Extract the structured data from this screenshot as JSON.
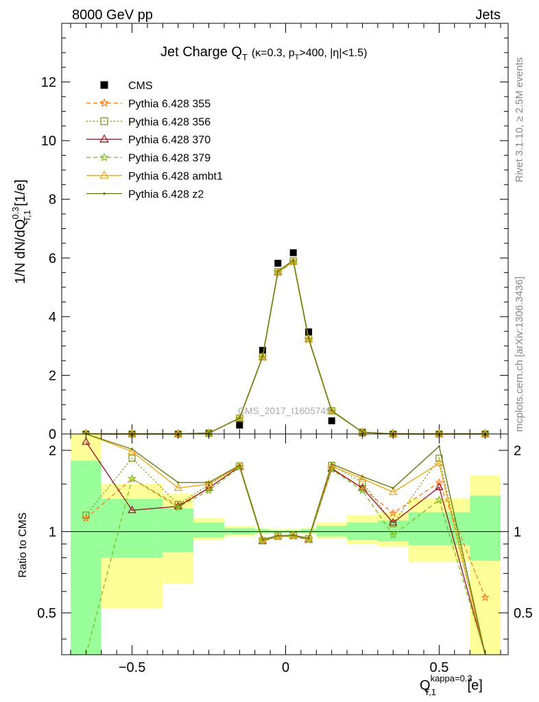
{
  "header": {
    "left": "8000 GeV pp",
    "right": "Jets"
  },
  "side_labels": {
    "rivet": "Rivet 3.1.10, ≥ 2.5M events",
    "mcplots": "mcplots.cern.ch [arXiv:1306.3436]"
  },
  "watermark": "CMS_2017_I1605749",
  "chart_data": [
    {
      "type": "line",
      "panel": "main",
      "title": {
        "main": "Jet Charge Q",
        "main_sub": "T",
        "cond_a": "(κ=0.3, p",
        "cond_sub": "T",
        "cond_b": ">400, |η|<1.5)"
      },
      "ylabel": {
        "a": "1/N dN/dQ",
        "sup": "0.3",
        "sub": "T,1",
        "b": " [1/e]"
      },
      "xlim": [
        -0.7,
        0.7
      ],
      "ylim": [
        0,
        14.0
      ],
      "yticks": [
        0,
        2,
        4,
        6,
        8,
        10,
        12
      ],
      "x": [
        -0.65,
        -0.5,
        -0.35,
        -0.25,
        -0.15,
        -0.075,
        -0.025,
        0.025,
        0.075,
        0.15,
        0.25,
        0.35,
        0.5,
        0.65
      ],
      "series": [
        {
          "name": "CMS",
          "color": "#000000",
          "marker": "square",
          "values": [
            0.0,
            0.0,
            0.0,
            0.02,
            0.3,
            2.85,
            5.82,
            6.18,
            3.48,
            0.45,
            0.04,
            0.0,
            0.0,
            0.0
          ]
        },
        {
          "name": "Pythia 6.428 355",
          "color": "#ff7f27",
          "dash": "6,4",
          "marker": "star",
          "values": [
            0.0,
            0.0,
            0.0,
            0.03,
            0.53,
            2.62,
            5.52,
            5.88,
            3.23,
            0.78,
            0.06,
            0.0,
            0.0,
            0.0
          ]
        },
        {
          "name": "Pythia 6.428 356",
          "color": "#7a9a18",
          "dash": "2,3",
          "marker": "square-open",
          "values": [
            0.0,
            0.0,
            0.0,
            0.03,
            0.54,
            2.63,
            5.53,
            5.9,
            3.25,
            0.79,
            0.06,
            0.0,
            0.0,
            0.0
          ]
        },
        {
          "name": "Pythia 6.428 370",
          "color": "#9b1a2a",
          "dash": "",
          "marker": "triangle-open",
          "values": [
            0.0,
            0.0,
            0.0,
            0.03,
            0.53,
            2.62,
            5.52,
            5.88,
            3.23,
            0.78,
            0.06,
            0.0,
            0.0,
            0.0
          ]
        },
        {
          "name": "Pythia 6.428 379",
          "color": "#7fbf1f",
          "dash": "6,4",
          "marker": "star",
          "values": [
            0.0,
            0.0,
            0.0,
            0.03,
            0.53,
            2.61,
            5.5,
            5.86,
            3.21,
            0.77,
            0.06,
            0.0,
            0.0,
            0.0
          ]
        },
        {
          "name": "Pythia 6.428 ambt1",
          "color": "#f0a818",
          "dash": "",
          "marker": "triangle-open",
          "values": [
            0.0,
            0.0,
            0.0,
            0.03,
            0.54,
            2.63,
            5.53,
            5.89,
            3.24,
            0.79,
            0.06,
            0.0,
            0.0,
            0.0
          ]
        },
        {
          "name": "Pythia 6.428 z2",
          "color": "#6b7a12",
          "dash": "",
          "marker": "dot",
          "values": [
            0.0,
            0.0,
            0.0,
            0.03,
            0.54,
            2.64,
            5.55,
            5.92,
            3.26,
            0.8,
            0.06,
            0.0,
            0.0,
            0.0
          ]
        }
      ]
    },
    {
      "type": "line",
      "panel": "ratio",
      "ylabel": "Ratio to CMS",
      "xlabel": {
        "a": "Q",
        "sup": "kappa=0.3",
        "sub": "T,1",
        "b": " [e]"
      },
      "xlim": [
        -0.7,
        0.7
      ],
      "ylim": [
        0.35,
        2.3
      ],
      "yticks": [
        0.5,
        1,
        2
      ],
      "xticks": [
        -0.5,
        0,
        0.5
      ],
      "xtick_labels": [
        "−0.5",
        "0",
        "0.5"
      ],
      "uncertainty_bands": {
        "edges": [
          -0.7,
          -0.6,
          -0.4,
          -0.3,
          -0.2,
          -0.1,
          -0.05,
          0.0,
          0.05,
          0.1,
          0.2,
          0.3,
          0.4,
          0.6,
          0.7
        ],
        "stat_green": {
          "color": "#9aff9a",
          "low": [
            0.35,
            0.8,
            0.84,
            0.95,
            0.975,
            0.985,
            0.99,
            0.99,
            0.985,
            0.96,
            0.93,
            0.92,
            0.89,
            0.78
          ],
          "high": [
            1.83,
            1.32,
            1.22,
            1.08,
            1.03,
            1.02,
            1.01,
            1.01,
            1.02,
            1.05,
            1.08,
            1.1,
            1.18,
            1.36
          ]
        },
        "total_yellow": {
          "color": "#ffff99",
          "low": [
            0.35,
            0.52,
            0.64,
            0.93,
            0.96,
            0.98,
            0.985,
            0.985,
            0.98,
            0.94,
            0.9,
            0.88,
            0.77,
            0.35
          ],
          "high": [
            2.3,
            1.5,
            1.38,
            1.12,
            1.05,
            1.03,
            1.02,
            1.02,
            1.03,
            1.08,
            1.15,
            1.18,
            1.33,
            1.62
          ]
        }
      },
      "series": [
        {
          "name": "Pythia 6.428 355",
          "color": "#ff7f27",
          "dash": "6,4",
          "marker": "star",
          "values": [
            1.12,
            1.57,
            1.25,
            1.45,
            1.74,
            0.93,
            0.96,
            0.965,
            0.935,
            1.72,
            1.45,
            1.17,
            1.52,
            0.57
          ]
        },
        {
          "name": "Pythia 6.428 356",
          "color": "#7a9a18",
          "dash": "2,3",
          "marker": "square-open",
          "values": [
            1.15,
            1.87,
            1.26,
            1.49,
            1.75,
            0.925,
            0.962,
            0.968,
            0.94,
            1.76,
            1.52,
            1.07,
            1.87,
            0.35
          ]
        },
        {
          "name": "Pythia 6.428 370",
          "color": "#9b1a2a",
          "dash": "",
          "marker": "triangle-open",
          "values": [
            2.15,
            1.2,
            1.24,
            1.45,
            1.74,
            0.925,
            0.96,
            0.965,
            0.935,
            1.71,
            1.45,
            1.08,
            1.46,
            0.35
          ]
        },
        {
          "name": "Pythia 6.428 379",
          "color": "#7fbf1f",
          "dash": "6,4",
          "marker": "star",
          "values": [
            0.35,
            1.57,
            1.23,
            1.42,
            1.73,
            0.92,
            0.955,
            0.96,
            0.93,
            1.7,
            1.42,
            0.97,
            1.31,
            0.35
          ]
        },
        {
          "name": "Pythia 6.428 ambt1",
          "color": "#f0a818",
          "dash": "",
          "marker": "triangle-open",
          "values": [
            2.3,
            1.98,
            1.45,
            1.5,
            1.75,
            0.93,
            0.962,
            0.968,
            0.94,
            1.75,
            1.57,
            1.4,
            1.79,
            0.35
          ]
        },
        {
          "name": "Pythia 6.428 z2",
          "color": "#6b7a12",
          "dash": "",
          "marker": "dot",
          "values": [
            2.3,
            2.02,
            1.52,
            1.52,
            1.76,
            0.935,
            0.965,
            0.97,
            0.945,
            1.78,
            1.6,
            1.45,
            2.07,
            0.35
          ]
        }
      ]
    }
  ]
}
